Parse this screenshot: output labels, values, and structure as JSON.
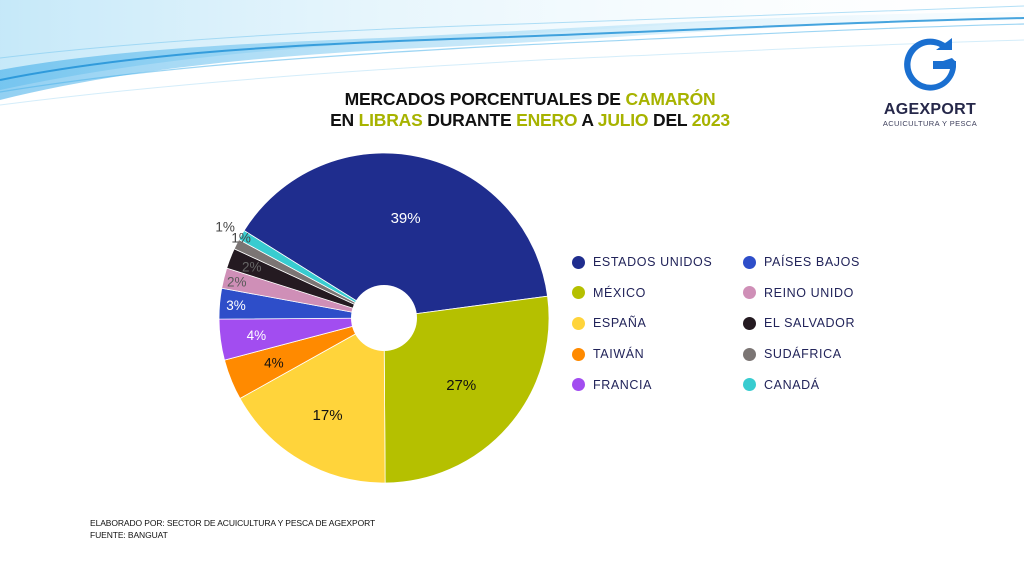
{
  "logo": {
    "name": "AGEXPORT",
    "tagline": "ACUICULTURA Y PESCA"
  },
  "title": {
    "line1": [
      "MERCADOS PORCENTUALES DE ",
      "CAMARÓN"
    ],
    "line2": [
      "EN ",
      "LIBRAS",
      " DURANTE ",
      "ENERO",
      " A ",
      "JULIO",
      " DEL ",
      "2023"
    ]
  },
  "chart_data": {
    "type": "pie",
    "donut_hole": true,
    "legend_position": "right",
    "series": [
      {
        "name": "ESTADOS UNIDOS",
        "value": 39,
        "label": "39%",
        "color": "#1f2d8e"
      },
      {
        "name": "MÉXICO",
        "value": 27,
        "label": "27%",
        "color": "#b5c000"
      },
      {
        "name": "ESPAÑA",
        "value": 17,
        "label": "17%",
        "color": "#ffd43b"
      },
      {
        "name": "TAIWÁN",
        "value": 4,
        "label": "4%",
        "color": "#ff8a00"
      },
      {
        "name": "FRANCIA",
        "value": 4,
        "label": "4%",
        "color": "#a24df0"
      },
      {
        "name": "PAÍSES BAJOS",
        "value": 3,
        "label": "3%",
        "color": "#2e4ec9"
      },
      {
        "name": "REINO UNIDO",
        "value": 2,
        "label": "2%",
        "color": "#cf8fb7"
      },
      {
        "name": "EL SALVADOR",
        "value": 2,
        "label": "2%",
        "color": "#241a21"
      },
      {
        "name": "SUDÁFRICA",
        "value": 1,
        "label": "1%",
        "color": "#7b7574"
      },
      {
        "name": "CANADÁ",
        "value": 1,
        "label": "1%",
        "color": "#38ccd0"
      }
    ]
  },
  "footer": {
    "line1": "ELABORADO POR: SECTOR DE ACUICULTURA Y PESCA DE AGEXPORT",
    "line2": "FUENTE:  BANGUAT"
  }
}
